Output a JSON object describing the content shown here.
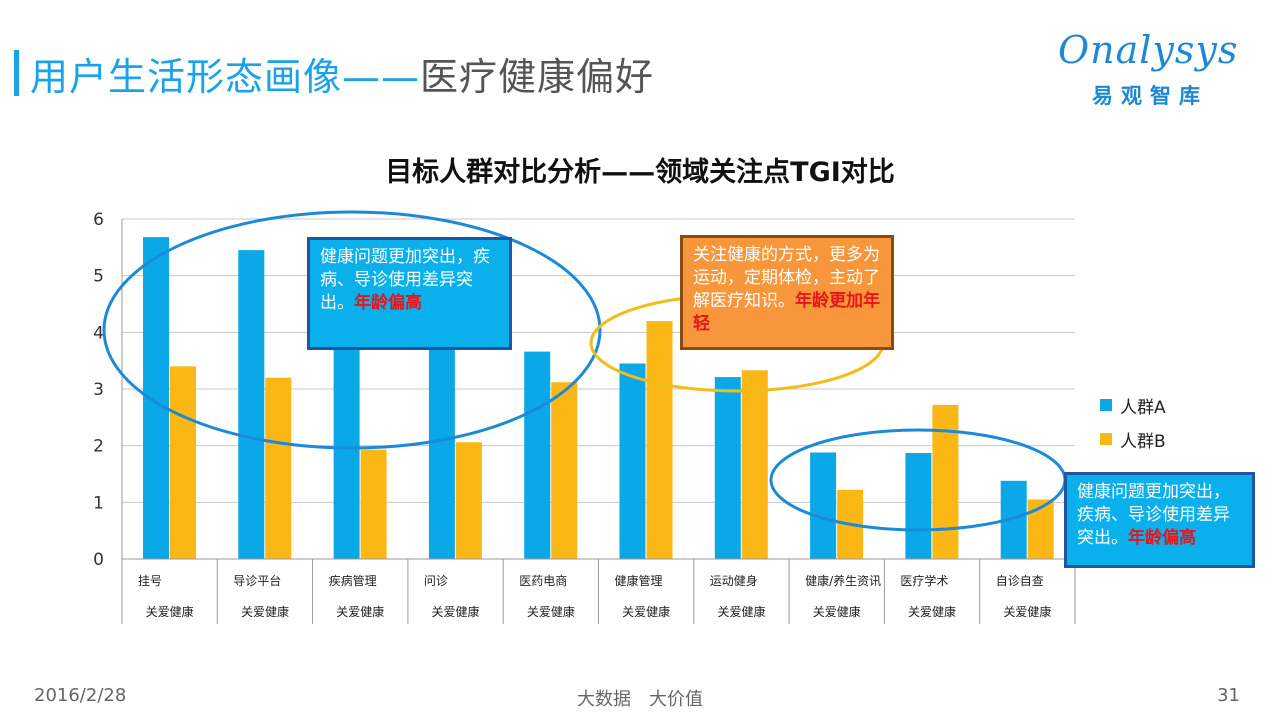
{
  "slide": {
    "title_main": "用户生活形态画像——",
    "title_sub": "医疗健康偏好",
    "logo_en": "Onalysys",
    "logo_cn": "易观智库"
  },
  "footer": {
    "date": "2016/2/28",
    "slogan": "大数据　大价值",
    "page": "31"
  },
  "colors": {
    "group_a": "#0aa8e6",
    "group_b": "#fbb715",
    "ellipse_blue": "#1c8ad8",
    "ellipse_yellow": "#f2bd1b"
  },
  "callouts": [
    {
      "text": "健康问题更加突出，疾病、导诊使用差异突出。",
      "highlight": "年龄偏高"
    },
    {
      "text": "关注健康的方式，更多为运动，定期体检，主动了解医疗知识。",
      "highlight": "年龄更加年轻"
    },
    {
      "text": "健康问题更加突出，疾病、导诊使用差异突出。",
      "highlight": "年龄偏高"
    }
  ],
  "chart_data": {
    "type": "bar",
    "title": "目标人群对比分析——领域关注点TGI对比",
    "categories": [
      "挂号",
      "导诊平台",
      "疾病管理",
      "问诊",
      "医药电商",
      "健康管理",
      "运动健身",
      "健康/养生资讯",
      "医疗学术",
      "自诊自查"
    ],
    "group_label": "关爱健康",
    "series": [
      {
        "name": "人群A",
        "values": [
          5.68,
          5.45,
          3.78,
          3.75,
          3.66,
          3.45,
          3.21,
          1.88,
          1.87,
          1.38
        ]
      },
      {
        "name": "人群B",
        "values": [
          3.4,
          3.2,
          1.93,
          2.06,
          3.12,
          4.2,
          3.33,
          1.22,
          2.72,
          1.05
        ]
      }
    ],
    "ylim": [
      0,
      6
    ],
    "yticks": [
      0,
      1,
      2,
      3,
      4,
      5,
      6
    ],
    "grid": true,
    "legend_position": "right"
  }
}
